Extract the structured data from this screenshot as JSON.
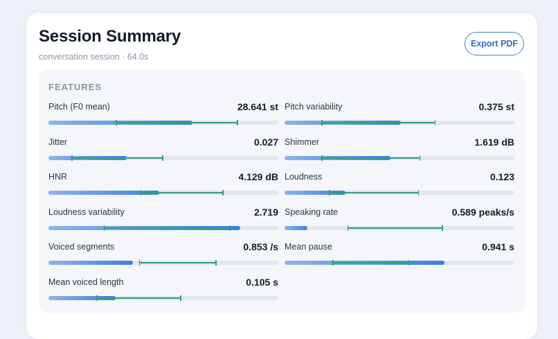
{
  "summary": {
    "title": "Session Summary",
    "subtitle": "conversation session · 64.0s",
    "export_label": "Export PDF"
  },
  "features": {
    "heading": "FEATURES",
    "items": [
      {
        "label": "Pitch (F0 mean)",
        "value": "28.641 st",
        "fill": 0.626,
        "range": [
          0.293,
          0.825
        ]
      },
      {
        "label": "Pitch variability",
        "value": "0.375 st",
        "fill": 0.505,
        "range": [
          0.161,
          0.658
        ]
      },
      {
        "label": "Jitter",
        "value": "0.027",
        "fill": 0.341,
        "range": [
          0.1,
          0.5
        ]
      },
      {
        "label": "Shimmer",
        "value": "1.619 dB",
        "fill": 0.462,
        "range": [
          0.161,
          0.591
        ]
      },
      {
        "label": "HNR",
        "value": "4.129 dB",
        "fill": 0.483,
        "range": [
          0.4,
          0.762
        ]
      },
      {
        "label": "Loudness",
        "value": "0.123",
        "fill": 0.264,
        "range": [
          0.194,
          0.585
        ]
      },
      {
        "label": "Loudness variability",
        "value": "2.719",
        "fill": 0.834,
        "range": [
          0.24,
          0.793
        ]
      },
      {
        "label": "Speaking rate",
        "value": "0.589 peaks/s",
        "fill": 0.098,
        "range": [
          0.274,
          0.689
        ]
      },
      {
        "label": "Voiced segments",
        "value": "0.853 /s",
        "fill": 0.366,
        "range": [
          0.394,
          0.731
        ]
      },
      {
        "label": "Mean pause",
        "value": "0.941 s",
        "fill": 0.697,
        "range": [
          0.208,
          0.543
        ]
      },
      {
        "label": "Mean voiced length",
        "value": "0.105 s",
        "fill": 0.291,
        "range": [
          0.209,
          0.577
        ]
      }
    ]
  },
  "colors": {
    "accent": "#3d7ee0",
    "range_marker": "#2f9e7e",
    "track": "#e1e5ee"
  }
}
